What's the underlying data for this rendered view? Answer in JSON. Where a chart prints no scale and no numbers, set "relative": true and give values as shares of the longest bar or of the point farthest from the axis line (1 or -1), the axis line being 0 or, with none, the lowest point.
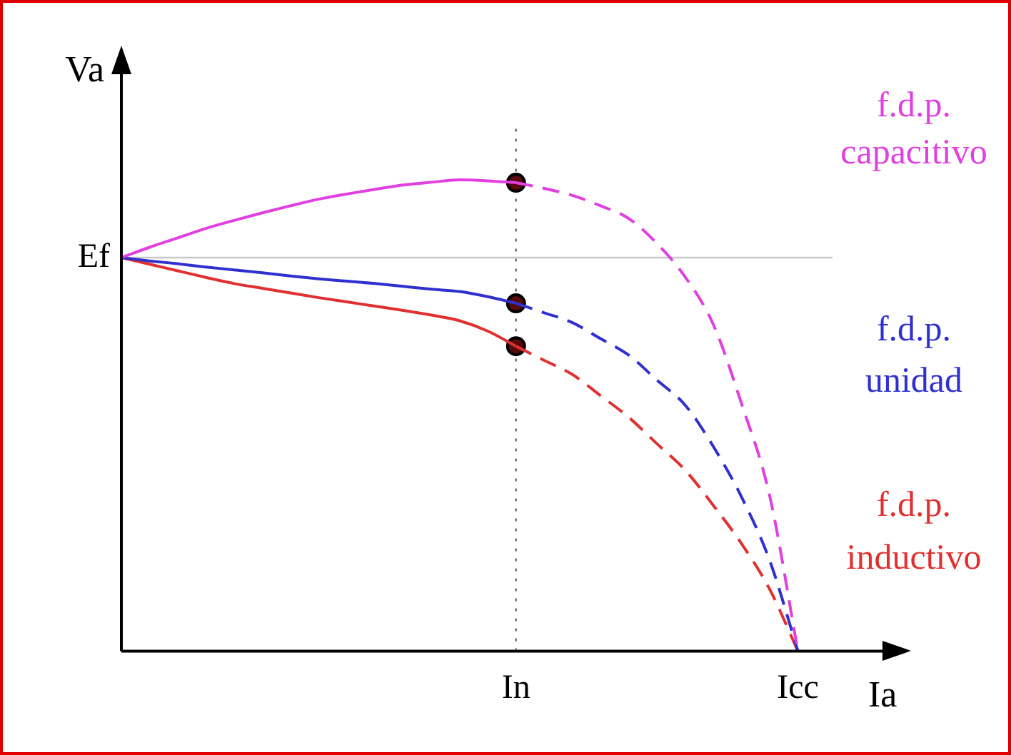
{
  "chart_data": {
    "type": "line",
    "relative": true,
    "xlabel": "Ia",
    "ylabel": "Va",
    "categories": [
      null,
      null,
      null,
      null,
      null,
      null,
      null,
      null,
      null,
      null,
      null,
      null,
      null,
      null,
      "In",
      null,
      null,
      null,
      null,
      null,
      null,
      null,
      null,
      null,
      "Icc",
      null,
      null,
      null
    ],
    "ref_lines": [
      {
        "axis": "y",
        "value": 0.835,
        "label": "Ef",
        "color": "#c8c8c8",
        "line_style": "solid"
      },
      {
        "axis": "x",
        "value": "In",
        "color": "#777777",
        "line_style": "dotted"
      }
    ],
    "grid": false,
    "legend": false,
    "series": [
      {
        "name": "f.d.p. capacitivo",
        "color": "#e040e0",
        "line_style": "solid",
        "values": [
          0.835,
          0.857,
          0.877,
          0.897,
          0.914,
          0.93,
          0.945,
          0.959,
          0.97,
          0.98,
          0.989,
          0.995,
          1,
          0.998,
          0.994,
          null,
          null,
          null,
          null,
          null,
          null,
          null,
          null,
          null,
          null,
          null,
          null,
          null
        ]
      },
      {
        "color": "#e040e0",
        "line_style": "dashed",
        "values": [
          null,
          null,
          null,
          null,
          null,
          null,
          null,
          null,
          null,
          null,
          null,
          null,
          null,
          null,
          0.994,
          0.982,
          0.967,
          0.945,
          0.918,
          0.865,
          0.794,
          0.693,
          0.525,
          0.329,
          0,
          null,
          null,
          null
        ]
      },
      {
        "name": "f.d.p. unidad",
        "color": "#3030d0",
        "line_style": "solid",
        "values": [
          0.835,
          0.828,
          0.822,
          0.815,
          0.809,
          0.803,
          0.796,
          0.79,
          0.785,
          0.78,
          0.774,
          0.768,
          0.763,
          0.752,
          0.738,
          null,
          null,
          null,
          null,
          null,
          null,
          null,
          null,
          null,
          null,
          null,
          null,
          null
        ]
      },
      {
        "color": "#3030d0",
        "line_style": "dashed",
        "values": [
          null,
          null,
          null,
          null,
          null,
          null,
          null,
          null,
          null,
          null,
          null,
          null,
          null,
          null,
          0.738,
          0.718,
          0.697,
          0.663,
          0.628,
          0.575,
          0.522,
          0.434,
          0.327,
          0.192,
          0,
          null,
          null,
          null
        ]
      },
      {
        "name": "f.d.p. inductivo",
        "color": "#e03030",
        "line_style": "solid",
        "values": [
          0.835,
          0.821,
          0.807,
          0.793,
          0.78,
          0.77,
          0.76,
          0.75,
          0.741,
          0.732,
          0.723,
          0.713,
          0.701,
          0.679,
          0.647,
          null,
          null,
          null,
          null,
          null,
          null,
          null,
          null,
          null,
          null,
          null,
          null,
          null
        ]
      },
      {
        "color": "#e03030",
        "line_style": "dashed",
        "values": [
          null,
          null,
          null,
          null,
          null,
          null,
          null,
          null,
          null,
          null,
          null,
          null,
          null,
          null,
          0.647,
          0.617,
          0.587,
          0.542,
          0.496,
          0.44,
          0.384,
          0.309,
          0.228,
          0.131,
          0,
          null,
          null,
          null
        ]
      },
      {
        "type": "scatter",
        "color": "#5a0a0a",
        "marker": "circle",
        "values": [
          null,
          null,
          null,
          null,
          null,
          null,
          null,
          null,
          null,
          null,
          null,
          null,
          null,
          null,
          0.994,
          null,
          null,
          null,
          null,
          null,
          null,
          null,
          null,
          null,
          null,
          null,
          null,
          null
        ]
      },
      {
        "type": "scatter",
        "color": "#5a0a0a",
        "marker": "circle",
        "values": [
          null,
          null,
          null,
          null,
          null,
          null,
          null,
          null,
          null,
          null,
          null,
          null,
          null,
          null,
          0.738,
          null,
          null,
          null,
          null,
          null,
          null,
          null,
          null,
          null,
          null,
          null,
          null,
          null
        ]
      },
      {
        "type": "scatter",
        "color": "#5a0a0a",
        "marker": "circle",
        "values": [
          null,
          null,
          null,
          null,
          null,
          null,
          null,
          null,
          null,
          null,
          null,
          null,
          null,
          null,
          0.647,
          null,
          null,
          null,
          null,
          null,
          null,
          null,
          null,
          null,
          null,
          null,
          null,
          null
        ]
      }
    ]
  }
}
